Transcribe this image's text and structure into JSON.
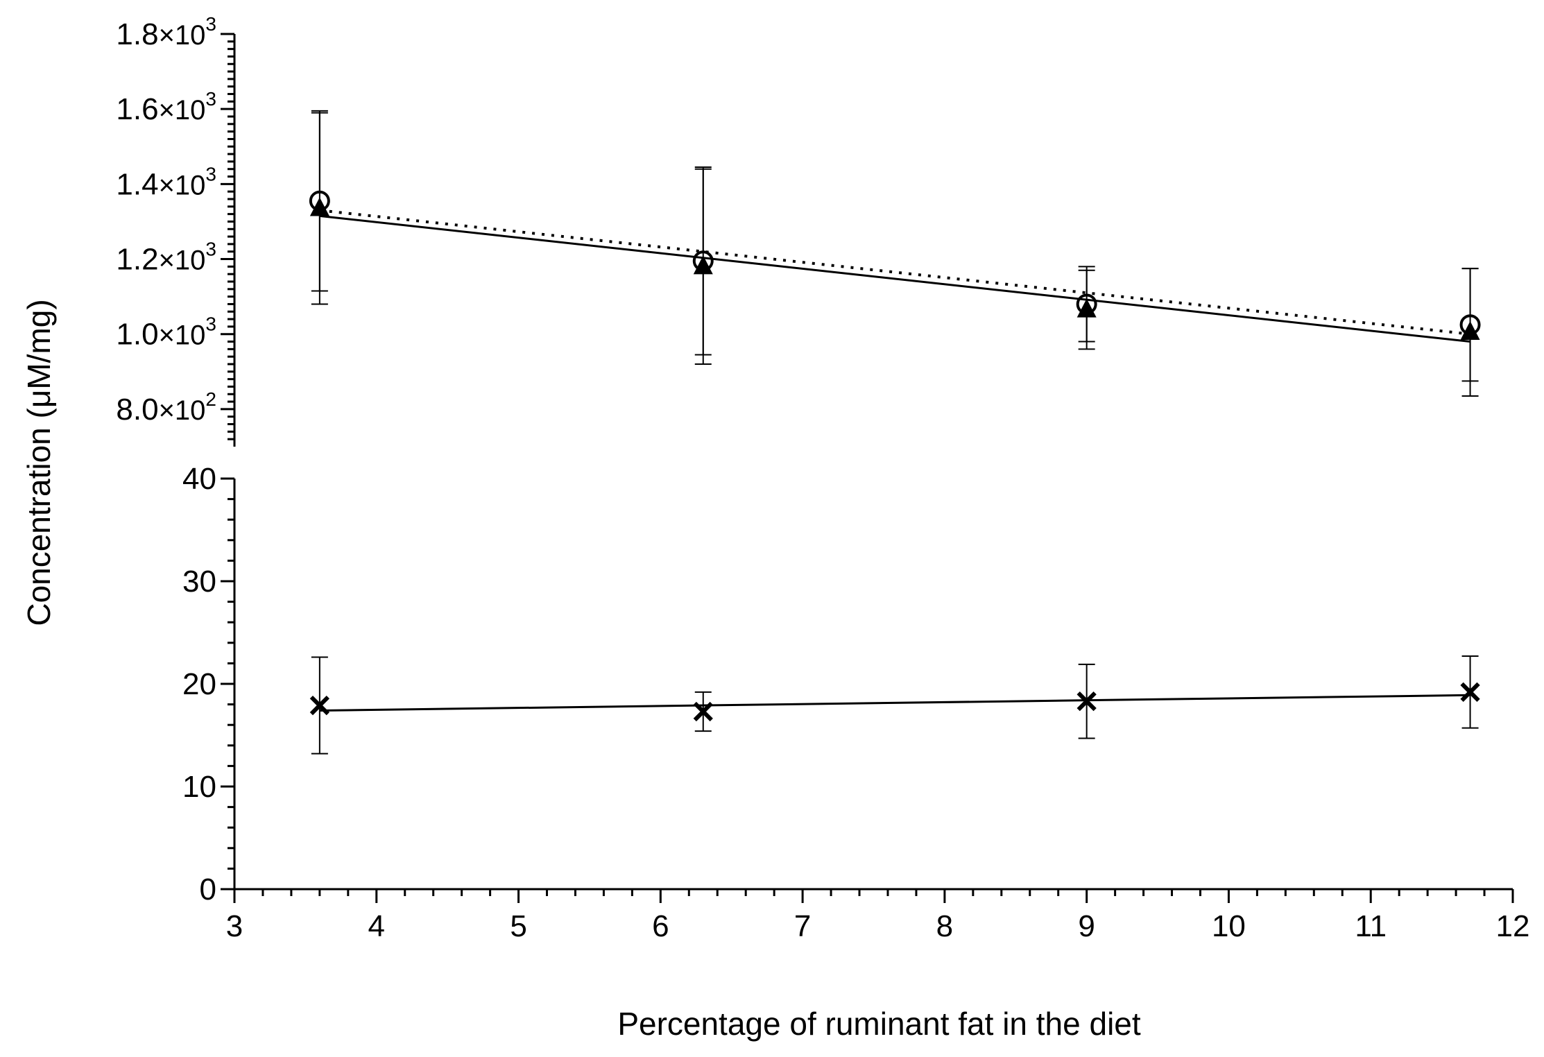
{
  "chart_data": {
    "type": "scatter",
    "title": "",
    "xlabel": "Percentage of ruminant fat in the diet",
    "ylabel": "Concentration (μM/mg)",
    "xlim": [
      3,
      12
    ],
    "x_ticks": [
      3,
      4,
      5,
      6,
      7,
      8,
      9,
      10,
      11,
      12
    ],
    "x_tick_labels": [
      "3",
      "4",
      "5",
      "6",
      "7",
      "8",
      "9",
      "10",
      "11",
      "12"
    ],
    "broken_y_axis": true,
    "y_segments": [
      {
        "name": "upper",
        "ylim": [
          700,
          1800
        ],
        "ticks": [
          800,
          1000,
          1200,
          1400,
          1600,
          1800
        ],
        "tick_mantissa": [
          "8.0",
          "1.0",
          "1.2",
          "1.4",
          "1.6",
          "1.8"
        ],
        "tick_exponent": [
          "2",
          "3",
          "3",
          "3",
          "3",
          "3"
        ],
        "tick_times": "×10"
      },
      {
        "name": "lower",
        "ylim": [
          0,
          40
        ],
        "ticks": [
          0,
          10,
          20,
          30,
          40
        ],
        "tick_labels": [
          "0",
          "10",
          "20",
          "30",
          "40"
        ]
      }
    ],
    "grid": false,
    "series": [
      {
        "marker": "open-circle",
        "segment": "upper",
        "x": [
          3.6,
          6.3,
          9.0,
          11.7
        ],
        "y": [
          1355,
          1195,
          1080,
          1025
        ],
        "err": [
          240,
          250,
          100,
          150
        ],
        "fit": {
          "style": "dotted",
          "x": [
            3.6,
            11.7
          ],
          "y": [
            1330,
            1000
          ]
        }
      },
      {
        "marker": "filled-triangle",
        "segment": "upper",
        "x": [
          3.6,
          6.3,
          9.0,
          11.7
        ],
        "y": [
          1335,
          1180,
          1065,
          1005
        ],
        "err": [
          255,
          260,
          105,
          170
        ],
        "fit": {
          "style": "solid",
          "x": [
            3.6,
            11.7
          ],
          "y": [
            1315,
            980
          ]
        }
      },
      {
        "marker": "x",
        "segment": "lower",
        "x": [
          3.6,
          6.3,
          9.0,
          11.7
        ],
        "y": [
          17.9,
          17.3,
          18.3,
          19.2
        ],
        "err": [
          4.7,
          1.9,
          3.6,
          3.5
        ],
        "fit": {
          "style": "solid",
          "x": [
            3.6,
            11.7
          ],
          "y": [
            17.4,
            18.9
          ]
        }
      }
    ]
  }
}
